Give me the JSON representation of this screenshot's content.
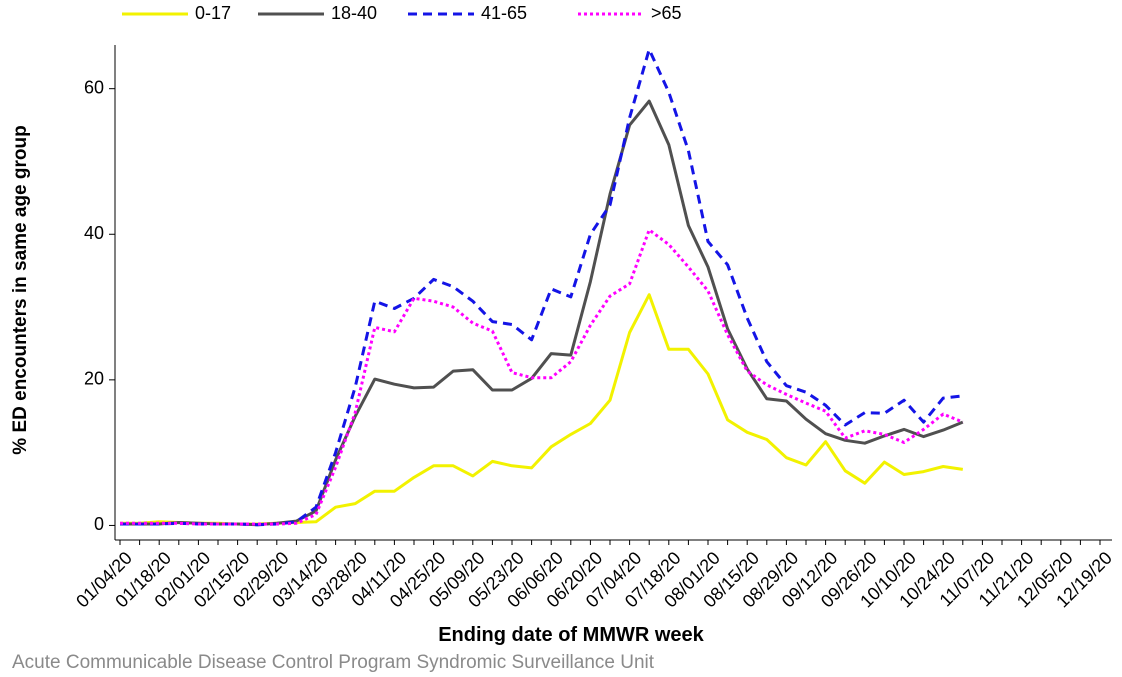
{
  "chart_data": {
    "type": "line",
    "xlabel": "Ending date of MMWR week",
    "ylabel": "% ED encounters in same age group",
    "source": "Acute Communicable Disease Control Program Syndromic Surveillance Unit",
    "categories": [
      "01/04/20",
      null,
      "01/18/20",
      null,
      "02/01/20",
      null,
      "02/15/20",
      null,
      "02/29/20",
      null,
      "03/14/20",
      null,
      "03/28/20",
      null,
      "04/11/20",
      null,
      "04/25/20",
      null,
      "05/09/20",
      null,
      "05/23/20",
      null,
      "06/06/20",
      null,
      "06/20/20",
      null,
      "07/04/20",
      null,
      "07/18/20",
      null,
      "08/01/20",
      null,
      "08/15/20",
      null,
      "08/29/20",
      null,
      "09/12/20",
      null,
      "09/26/20",
      null,
      "10/10/20",
      null,
      "10/24/20",
      null,
      "11/07/20",
      null,
      "11/21/20",
      null,
      "12/05/20",
      null,
      "12/19/20"
    ],
    "ylim": [
      -2,
      66
    ],
    "yticks": [
      0,
      20,
      40,
      60
    ],
    "legend": "top",
    "series": [
      {
        "name": "0-17",
        "color": "#f2f200",
        "style": "solid",
        "values": [
          0.3,
          0.3,
          0.5,
          0.4,
          0.3,
          0.3,
          0.2,
          0.2,
          0.3,
          0.4,
          0.5,
          2.5,
          3,
          4.7,
          4.7,
          6.6,
          8.2,
          8.2,
          6.8,
          8.8,
          8.2,
          7.9,
          10.8,
          12.5,
          14,
          17.2,
          26.5,
          31.7,
          24.2,
          24.2,
          20.8,
          14.5,
          12.8,
          11.8,
          9.3,
          8.3,
          11.5,
          7.5,
          5.8,
          8.7,
          7,
          7.4,
          8.1,
          7.7,
          null,
          null,
          null,
          null,
          null,
          null,
          null
        ]
      },
      {
        "name": "18-40",
        "color": "#505050",
        "style": "solid",
        "values": [
          0.2,
          0.2,
          0.2,
          0.4,
          0.3,
          0.2,
          0.2,
          0.1,
          0.3,
          0.6,
          2,
          9,
          15,
          20.1,
          19.4,
          18.9,
          19,
          21.2,
          21.4,
          18.6,
          18.6,
          20.2,
          23.6,
          23.4,
          33.5,
          45.5,
          55,
          58.3,
          52.3,
          41.2,
          35.5,
          27,
          21.5,
          17.4,
          17.1,
          14.6,
          12.6,
          11.7,
          11.3,
          12.3,
          13.2,
          12.2,
          13.1,
          14.2,
          null,
          null,
          null,
          null,
          null,
          null,
          null
        ]
      },
      {
        "name": "41-65",
        "color": "#1414e6",
        "style": "dashed",
        "values": [
          0.2,
          0.2,
          0.2,
          0.3,
          0.2,
          0.2,
          0.2,
          0.1,
          0.2,
          0.5,
          2.5,
          10,
          19,
          30.8,
          29.8,
          31.2,
          33.8,
          32.8,
          30.8,
          28,
          27.6,
          25.5,
          32.5,
          31.4,
          40,
          44,
          56,
          65.4,
          59.5,
          51.5,
          39,
          35.8,
          28.5,
          22.5,
          19.2,
          18.3,
          16.5,
          13.8,
          15.5,
          15.4,
          17.2,
          14.2,
          17.5,
          17.8,
          null,
          null,
          null,
          null,
          null,
          null,
          null
        ]
      },
      {
        "name": ">65",
        "color": "#ff00ff",
        "style": "dotted",
        "values": [
          0.3,
          0.3,
          0.3,
          0.3,
          0.2,
          0.2,
          0.2,
          0.2,
          0.2,
          0.3,
          1.5,
          8,
          15.5,
          27.2,
          26.6,
          31.2,
          30.8,
          30,
          27.8,
          26.7,
          21,
          20.3,
          20.3,
          22.5,
          27.5,
          31.5,
          33.2,
          40.6,
          38.6,
          35.5,
          32.2,
          26.2,
          21.2,
          19.3,
          18,
          16.8,
          15.7,
          12,
          13,
          12.5,
          11.4,
          13.2,
          15.3,
          14.2,
          null,
          null,
          null,
          null,
          null,
          null,
          null
        ]
      }
    ]
  }
}
